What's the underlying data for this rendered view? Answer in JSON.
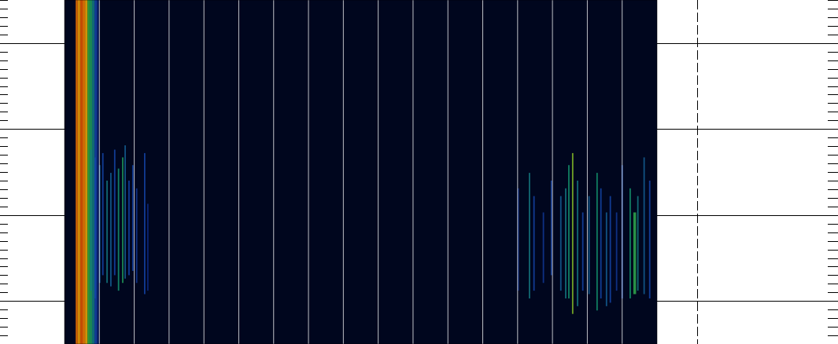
{
  "chart_data": {
    "type": "spectrogram",
    "tick_labels": false,
    "grid": true,
    "xlim": [
      0,
      17
    ],
    "xticks": [
      1,
      2,
      3,
      4,
      5,
      6,
      7,
      8,
      9,
      10,
      11,
      12,
      13,
      14,
      15,
      16
    ],
    "ylim": [
      0.5,
      4.5
    ],
    "yticks": [
      1,
      2,
      3,
      4
    ],
    "color_range": [
      0,
      1
    ],
    "streaks": [
      {
        "x0": 0.32,
        "x1": 0.38,
        "y0": 0.5,
        "y1": 4.5,
        "z": 0.88
      },
      {
        "x0": 0.38,
        "x1": 0.45,
        "y0": 0.5,
        "y1": 4.5,
        "z": 0.8
      },
      {
        "x0": 0.45,
        "x1": 0.52,
        "y0": 0.5,
        "y1": 4.5,
        "z": 0.92
      },
      {
        "x0": 0.52,
        "x1": 0.59,
        "y0": 0.5,
        "y1": 4.5,
        "z": 0.86
      },
      {
        "x0": 0.59,
        "x1": 0.66,
        "y0": 0.5,
        "y1": 4.5,
        "z": 0.78
      },
      {
        "x0": 0.66,
        "x1": 0.72,
        "y0": 0.5,
        "y1": 4.5,
        "z": 0.6
      },
      {
        "x0": 0.72,
        "x1": 0.79,
        "y0": 0.5,
        "y1": 4.5,
        "z": 0.5
      },
      {
        "x0": 0.79,
        "x1": 0.86,
        "y0": 0.5,
        "y1": 4.5,
        "z": 0.4
      },
      {
        "x0": 0.86,
        "x1": 0.93,
        "y0": 0.5,
        "y1": 4.5,
        "z": 0.3
      },
      {
        "x0": 0.93,
        "x1": 0.98,
        "y0": 0.5,
        "y1": 4.5,
        "z": 0.18
      },
      {
        "x0": 0.74,
        "x1": 0.78,
        "y0": 1.12,
        "y1": 2.76,
        "z": 0.4
      },
      {
        "x0": 0.86,
        "x1": 0.9,
        "y0": 1.03,
        "y1": 2.67,
        "z": 0.3
      },
      {
        "x0": 0.99,
        "x1": 1.03,
        "y0": 1.21,
        "y1": 2.58,
        "z": 0.35
      },
      {
        "x0": 1.08,
        "x1": 1.12,
        "y0": 1.3,
        "y1": 2.72,
        "z": 0.3
      },
      {
        "x0": 1.2,
        "x1": 1.24,
        "y0": 1.21,
        "y1": 2.4,
        "z": 0.4
      },
      {
        "x0": 1.31,
        "x1": 1.35,
        "y0": 1.17,
        "y1": 2.49,
        "z": 0.35
      },
      {
        "x0": 1.42,
        "x1": 1.46,
        "y0": 1.3,
        "y1": 2.76,
        "z": 0.3
      },
      {
        "x0": 1.53,
        "x1": 1.57,
        "y0": 1.12,
        "y1": 2.54,
        "z": 0.45
      },
      {
        "x0": 1.65,
        "x1": 1.69,
        "y0": 1.21,
        "y1": 2.67,
        "z": 0.5
      },
      {
        "x0": 1.72,
        "x1": 1.76,
        "y0": 1.26,
        "y1": 2.81,
        "z": 0.35
      },
      {
        "x0": 1.83,
        "x1": 1.87,
        "y0": 1.3,
        "y1": 2.4,
        "z": 0.3
      },
      {
        "x0": 1.94,
        "x1": 1.98,
        "y0": 1.35,
        "y1": 2.58,
        "z": 0.3
      },
      {
        "x0": 2.05,
        "x1": 2.09,
        "y0": 1.21,
        "y1": 2.31,
        "z": 0.25
      },
      {
        "x0": 2.28,
        "x1": 2.32,
        "y0": 1.08,
        "y1": 2.72,
        "z": 0.3
      },
      {
        "x0": 2.37,
        "x1": 2.41,
        "y0": 1.12,
        "y1": 2.13,
        "z": 0.2
      },
      {
        "x0": 13.0,
        "x1": 13.04,
        "y0": 1.12,
        "y1": 2.31,
        "z": 0.2
      },
      {
        "x0": 13.32,
        "x1": 13.36,
        "y0": 1.03,
        "y1": 2.49,
        "z": 0.4
      },
      {
        "x0": 13.45,
        "x1": 13.49,
        "y0": 1.12,
        "y1": 2.22,
        "z": 0.3
      },
      {
        "x0": 13.72,
        "x1": 13.76,
        "y0": 1.21,
        "y1": 2.03,
        "z": 0.25
      },
      {
        "x0": 13.95,
        "x1": 13.99,
        "y0": 1.3,
        "y1": 2.4,
        "z": 0.3
      },
      {
        "x0": 14.22,
        "x1": 14.26,
        "y0": 1.12,
        "y1": 2.22,
        "z": 0.35
      },
      {
        "x0": 14.36,
        "x1": 14.4,
        "y0": 1.03,
        "y1": 2.31,
        "z": 0.4
      },
      {
        "x0": 14.45,
        "x1": 14.49,
        "y0": 1.03,
        "y1": 2.58,
        "z": 0.45
      },
      {
        "x0": 14.56,
        "x1": 14.6,
        "y0": 0.85,
        "y1": 2.72,
        "z": 0.65
      },
      {
        "x0": 14.7,
        "x1": 14.74,
        "y0": 0.94,
        "y1": 2.4,
        "z": 0.4
      },
      {
        "x0": 14.85,
        "x1": 14.89,
        "y0": 1.12,
        "y1": 2.03,
        "z": 0.3
      },
      {
        "x0": 15.03,
        "x1": 15.07,
        "y0": 1.08,
        "y1": 2.22,
        "z": 0.35
      },
      {
        "x0": 15.26,
        "x1": 15.3,
        "y0": 0.89,
        "y1": 2.49,
        "z": 0.45
      },
      {
        "x0": 15.37,
        "x1": 15.41,
        "y0": 1.03,
        "y1": 2.31,
        "z": 0.3
      },
      {
        "x0": 15.53,
        "x1": 15.57,
        "y0": 0.94,
        "y1": 2.03,
        "z": 0.35
      },
      {
        "x0": 15.64,
        "x1": 15.68,
        "y0": 0.98,
        "y1": 2.22,
        "z": 0.3
      },
      {
        "x0": 15.82,
        "x1": 15.86,
        "y0": 1.12,
        "y1": 2.03,
        "z": 0.25
      },
      {
        "x0": 15.98,
        "x1": 16.02,
        "y0": 1.03,
        "y1": 2.58,
        "z": 0.3
      },
      {
        "x0": 16.21,
        "x1": 16.25,
        "y0": 1.03,
        "y1": 2.31,
        "z": 0.45
      },
      {
        "x0": 16.32,
        "x1": 16.4,
        "y0": 1.08,
        "y1": 2.03,
        "z": 0.55
      },
      {
        "x0": 16.43,
        "x1": 16.47,
        "y0": 1.12,
        "y1": 2.22,
        "z": 0.4
      },
      {
        "x0": 16.61,
        "x1": 16.65,
        "y0": 1.08,
        "y1": 2.67,
        "z": 0.35
      },
      {
        "x0": 16.77,
        "x1": 16.81,
        "y0": 1.03,
        "y1": 2.4,
        "z": 0.3
      }
    ]
  }
}
